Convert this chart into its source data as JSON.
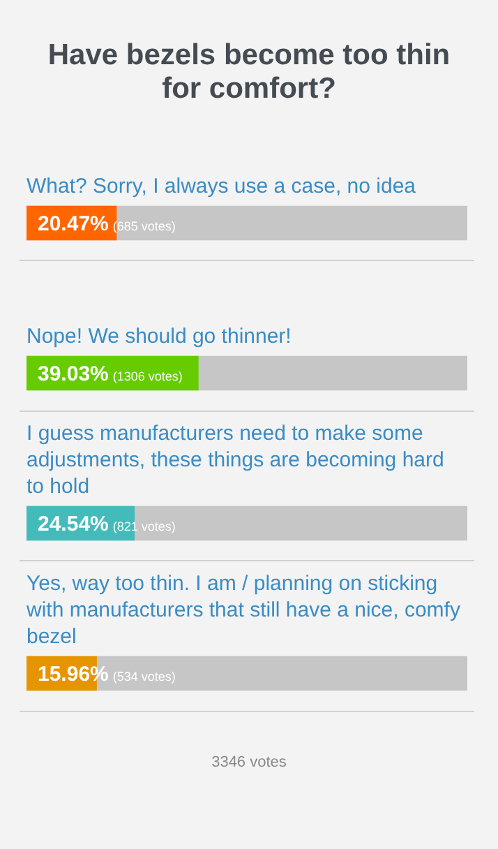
{
  "chart_data": {
    "type": "bar",
    "orientation": "horizontal",
    "title": "Have bezels become too thin for comfort?",
    "categories": [
      "What? Sorry, I always use a case, no idea",
      "Nope! We should go thinner!",
      "I guess manufacturers need to make some adjustments, these things are becoming hard to hold",
      "Yes, way too thin. I am / planning on sticking with manufacturers that still have a nice, comfy bezel"
    ],
    "values": [
      20.47,
      39.03,
      24.54,
      15.96
    ],
    "colors": [
      "#ff6600",
      "#66cc00",
      "#44bbbb",
      "#e69500"
    ],
    "value_labels": [
      "20.47% (685 votes)",
      "39.03% (1306 votes)",
      "24.54% (821 votes)",
      "15.96% (534 votes)"
    ],
    "xlim": [
      0,
      100
    ],
    "tick_labels": false,
    "legend": false,
    "annotations": [
      "3346 votes"
    ]
  }
}
